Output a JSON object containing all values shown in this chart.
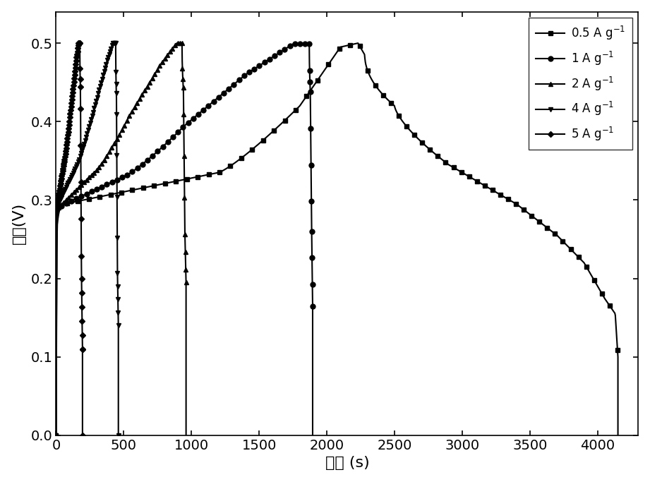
{
  "xlabel": "时间 (s)",
  "ylabel": "电压(V)",
  "xlim": [
    0,
    4300
  ],
  "ylim": [
    0.0,
    0.54
  ],
  "yticks": [
    0.0,
    0.1,
    0.2,
    0.3,
    0.4,
    0.5
  ],
  "xticks": [
    0,
    500,
    1000,
    1500,
    2000,
    2500,
    3000,
    3500,
    4000
  ],
  "background_color": "#ffffff",
  "series": [
    {
      "label": "0.5 A g$^{-1}$",
      "marker": "s",
      "marker_size": 5
    },
    {
      "label": "1 A g$^{-1}$",
      "marker": "o",
      "marker_size": 5
    },
    {
      "label": "2 A g$^{-1}$",
      "marker": "^",
      "marker_size": 5
    },
    {
      "label": "4 A g$^{-1}$",
      "marker": "v",
      "marker_size": 5
    },
    {
      "label": "5 A g$^{-1}$",
      "marker": "D",
      "marker_size": 4
    }
  ]
}
